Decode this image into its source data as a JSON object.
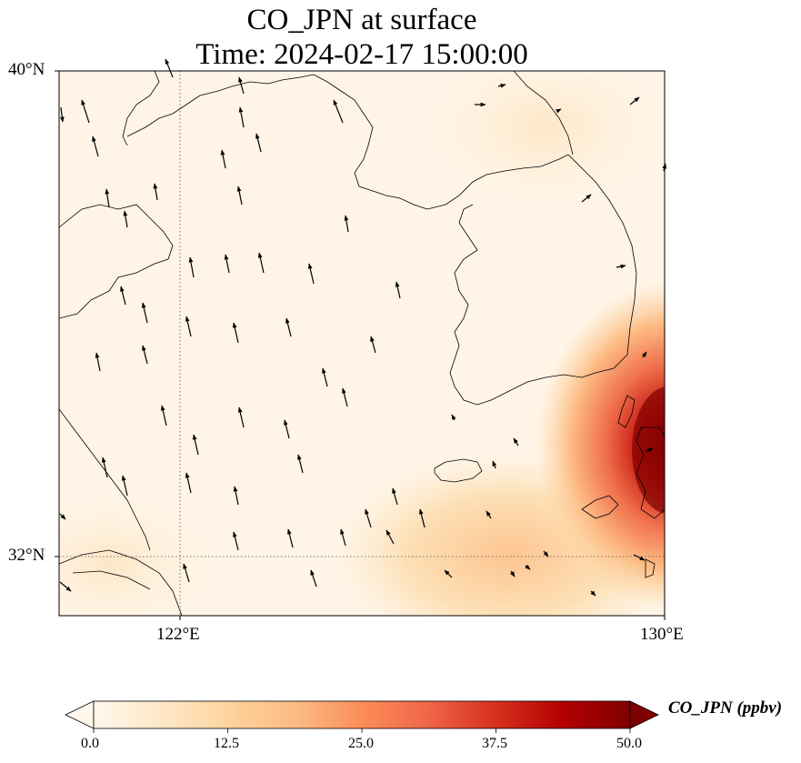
{
  "title": {
    "line1": "CO_JPN at surface",
    "line2": "Time: 2024-02-17 15:00:00"
  },
  "axes": {
    "lat_labels": [
      "40°N",
      "32°N"
    ],
    "lon_labels": [
      "122°E",
      "130°E"
    ],
    "lon_range": [
      120,
      130
    ],
    "lat_range": [
      31,
      40
    ],
    "gridlines": "dotted at 122°E and 32°N"
  },
  "colorbar": {
    "label": "CO_JPN (ppbv)",
    "ticks": [
      "0.0",
      "12.5",
      "25.0",
      "37.5",
      "50.0"
    ],
    "range": [
      0,
      50
    ],
    "colormap": "OrRd",
    "extend": "both",
    "colors": [
      "#fff7ec",
      "#fee8c8",
      "#fdd49e",
      "#fdbb84",
      "#fc8d59",
      "#ef6548",
      "#d7301f",
      "#b30000",
      "#7f0000"
    ]
  },
  "map_data": {
    "field": "CO_JPN",
    "level": "surface",
    "background_value_ppbv": 3,
    "hotspots": [
      {
        "region": "east edge near Tsushima / Kyushu",
        "peak_ppbv": 50
      },
      {
        "region": "south edge near 32°N 126°E",
        "peak_ppbv": 15
      }
    ],
    "wind_vectors": "mostly from south-southeast to north-northwest over Yellow Sea"
  }
}
